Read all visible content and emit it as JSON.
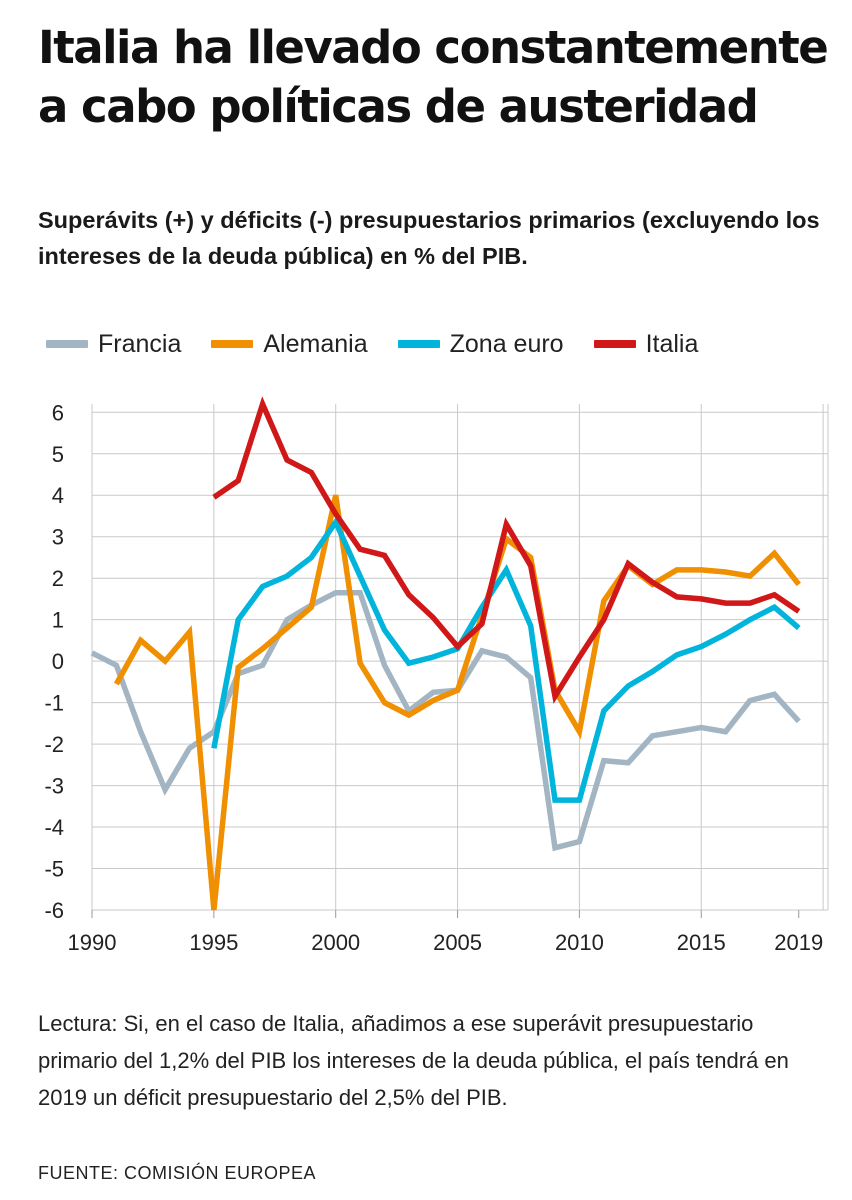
{
  "title": "Italia ha llevado constantemente a cabo políticas de austeridad",
  "subtitle": "Superávits (+) y déficits (-) presupuestarios primarios (excluyendo los intereses de la deuda pública) en % del PIB.",
  "note": "Lectura: Si, en el caso de Italia, añadimos a ese superávit presupuestario primario del 1,2% del PIB los intereses de la deuda pública, el país tendrá en 2019 un déficit presupuestario del 2,5% del PIB.",
  "source": "FUENTE: COMISIÓN  EUROPEA",
  "chart_data": {
    "type": "line",
    "title": "",
    "xlabel": "",
    "ylabel": "",
    "xlim": [
      1990,
      2020.2
    ],
    "ylim": [
      -6,
      6.2
    ],
    "x_ticks": [
      1990,
      1995,
      2000,
      2005,
      2010,
      2015,
      2019
    ],
    "x_tick_labels": [
      "1990",
      "1995",
      "2000",
      "2005",
      "2010",
      "2015",
      "2019"
    ],
    "y_ticks": [
      6,
      5,
      4,
      3,
      2,
      1,
      0,
      -1,
      -2,
      -3,
      -4,
      -5,
      -6
    ],
    "y_tick_labels": [
      "6",
      "5",
      "4",
      "3",
      "2",
      "1",
      "0",
      "-1",
      "-2",
      "-3",
      "-4",
      "-5",
      "-6"
    ],
    "grid": true,
    "legend_position": "top",
    "series": [
      {
        "name": "Francia",
        "color": "#a3b5c2",
        "x": [
          1990,
          1991,
          1992,
          1993,
          1994,
          1995,
          1996,
          1997,
          1998,
          1999,
          2000,
          2001,
          2002,
          2003,
          2004,
          2005,
          2006,
          2007,
          2008,
          2009,
          2010,
          2011,
          2012,
          2013,
          2014,
          2015,
          2016,
          2017,
          2018,
          2019
        ],
        "y": [
          0.2,
          -0.1,
          -1.7,
          -3.1,
          -2.1,
          -1.7,
          -0.3,
          -0.1,
          1.0,
          1.35,
          1.65,
          1.65,
          -0.1,
          -1.2,
          -0.75,
          -0.7,
          0.25,
          0.1,
          -0.4,
          -4.5,
          -4.35,
          -2.4,
          -2.45,
          -1.8,
          -1.7,
          -1.6,
          -1.7,
          -0.95,
          -0.8,
          -1.45
        ]
      },
      {
        "name": "Alemania",
        "color": "#f08f00",
        "x": [
          1991,
          1992,
          1993,
          1994,
          1995,
          1996,
          1997,
          1998,
          1999,
          2000,
          2001,
          2002,
          2003,
          2004,
          2005,
          2006,
          2007,
          2008,
          2009,
          2010,
          2011,
          2012,
          2013,
          2014,
          2015,
          2016,
          2017,
          2018,
          2019
        ],
        "y": [
          -0.55,
          0.5,
          0.0,
          0.7,
          -6.0,
          -0.15,
          0.3,
          0.8,
          1.3,
          4.0,
          -0.05,
          -1.0,
          -1.3,
          -0.95,
          -0.7,
          1.1,
          2.95,
          2.5,
          -0.7,
          -1.7,
          1.45,
          2.3,
          1.85,
          2.2,
          2.2,
          2.15,
          2.05,
          2.6,
          1.85
        ]
      },
      {
        "name": "Zona euro",
        "color": "#00b4db",
        "x": [
          1995,
          1996,
          1997,
          1998,
          1999,
          2000,
          2001,
          2002,
          2003,
          2004,
          2005,
          2006,
          2007,
          2008,
          2009,
          2010,
          2011,
          2012,
          2013,
          2014,
          2015,
          2016,
          2017,
          2018,
          2019
        ],
        "y": [
          -2.1,
          1.0,
          1.8,
          2.05,
          2.5,
          3.35,
          2.05,
          0.75,
          -0.05,
          0.1,
          0.3,
          1.3,
          2.2,
          0.85,
          -3.35,
          -3.35,
          -1.2,
          -0.6,
          -0.25,
          0.15,
          0.35,
          0.65,
          1.0,
          1.3,
          0.8
        ]
      },
      {
        "name": "Italia",
        "color": "#d01818",
        "x": [
          1995,
          1996,
          1997,
          1998,
          1999,
          2000,
          2001,
          2002,
          2003,
          2004,
          2005,
          2006,
          2007,
          2008,
          2009,
          2010,
          2011,
          2012,
          2013,
          2014,
          2015,
          2016,
          2017,
          2018,
          2019
        ],
        "y": [
          3.95,
          4.35,
          6.2,
          4.85,
          4.55,
          3.55,
          2.7,
          2.55,
          1.6,
          1.05,
          0.35,
          0.9,
          3.3,
          2.3,
          -0.85,
          0.1,
          1.0,
          2.35,
          1.9,
          1.55,
          1.5,
          1.4,
          1.4,
          1.6,
          1.2
        ]
      }
    ]
  }
}
